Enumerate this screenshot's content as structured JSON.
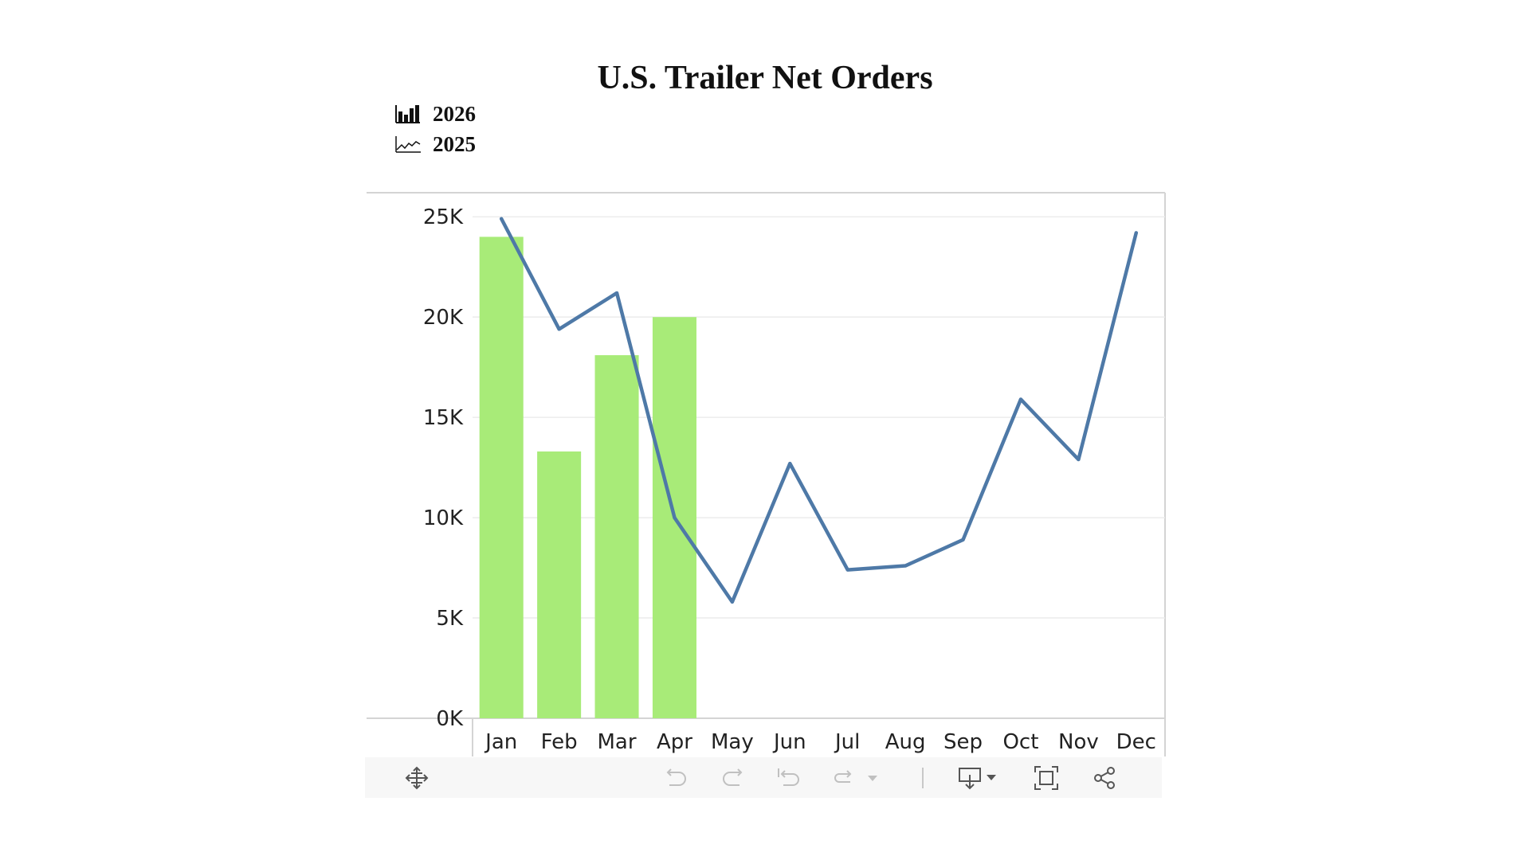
{
  "chart_data": {
    "type": "bar+line",
    "title": "U.S. Trailer Net Orders",
    "categories": [
      "Jan",
      "Feb",
      "Mar",
      "Apr",
      "May",
      "Jun",
      "Jul",
      "Aug",
      "Sep",
      "Oct",
      "Nov",
      "Dec"
    ],
    "series": [
      {
        "name": "2026",
        "type": "bar",
        "color": "#a8eb78",
        "values": [
          24000,
          13300,
          18100,
          20000,
          null,
          null,
          null,
          null,
          null,
          null,
          null,
          null
        ]
      },
      {
        "name": "2025",
        "type": "line",
        "color": "#4e79a7",
        "values": [
          24900,
          19400,
          21200,
          10000,
          5800,
          12700,
          7400,
          7600,
          8900,
          15900,
          12900,
          24200
        ]
      }
    ],
    "yticks": [
      "0K",
      "5K",
      "10K",
      "15K",
      "20K",
      "25K"
    ],
    "ylim": [
      0,
      26200
    ],
    "legend_position": "top-left",
    "grid": true
  },
  "legend": {
    "items": [
      {
        "label": "2026",
        "icon": "bar-chart-icon"
      },
      {
        "label": "2025",
        "icon": "line-chart-icon"
      }
    ]
  },
  "toolbar": {
    "icons": [
      "pan-icon",
      "undo-icon",
      "redo-icon",
      "revert-icon",
      "refresh-icon",
      "pause-dropdown-icon",
      "download-icon",
      "fullscreen-icon",
      "share-icon"
    ]
  }
}
